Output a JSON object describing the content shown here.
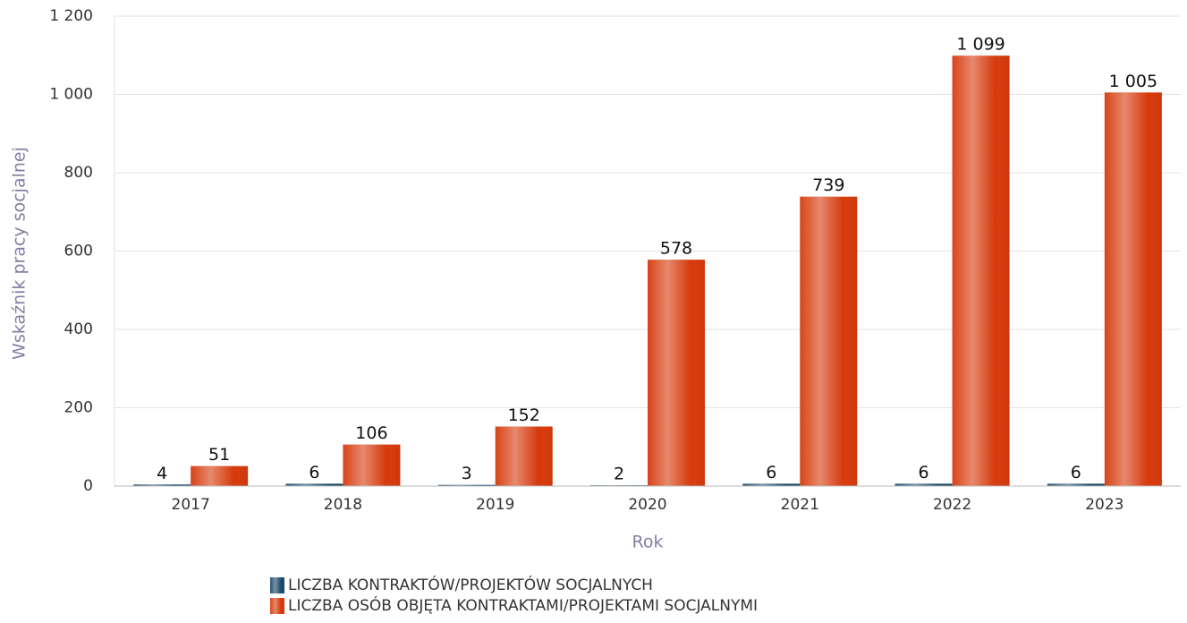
{
  "chart_data": {
    "type": "bar",
    "x_label": "Rok",
    "y_label": "Wskaźnik pracy socjalnej",
    "categories": [
      "2017",
      "2018",
      "2019",
      "2020",
      "2021",
      "2022",
      "2023"
    ],
    "series": [
      {
        "name": "LICZBA KONTRAKTÓW/PROJEKTÓW SOCJALNYCH",
        "color": "#1b4a6b",
        "values": [
          4,
          6,
          3,
          2,
          6,
          6,
          6
        ]
      },
      {
        "name": "LICZBA OSÓB OBJĘTA KONTRAKTAMI/PROJEKTAMI SOCJALNYMI",
        "color": "#d63a0c",
        "values": [
          51,
          106,
          152,
          578,
          739,
          1099,
          1005
        ],
        "value_labels": [
          "51",
          "106",
          "152",
          "578",
          "739",
          "1 099",
          "1 005"
        ]
      }
    ],
    "ylim": [
      0,
      1200
    ],
    "yticks": [
      0,
      200,
      400,
      600,
      800,
      {
        "value": 1000,
        "label": "1 000"
      },
      {
        "value": 1200,
        "label": "1 200"
      }
    ],
    "grid": true,
    "legend": "bottom"
  }
}
